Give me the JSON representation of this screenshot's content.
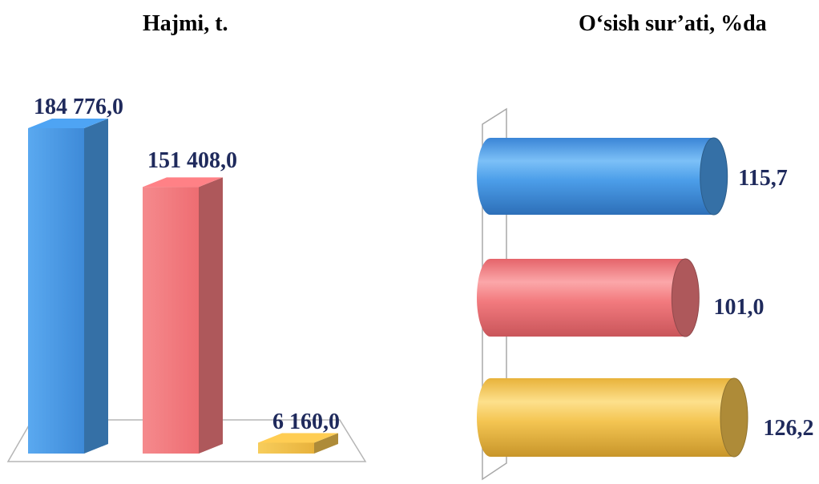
{
  "chart_data": [
    {
      "type": "bar",
      "title": "Hajmi, t.",
      "categories": [
        "",
        "",
        ""
      ],
      "values": [
        184776.0,
        151408.0,
        6160.0
      ],
      "labels": [
        "184 776,0",
        "151 408,0",
        "6 160,0"
      ],
      "colors": [
        "#4a9be6",
        "#f27a7e",
        "#f2c14e"
      ],
      "ylim": [
        0,
        184776
      ],
      "grid": false,
      "legend": "none"
    },
    {
      "type": "bar",
      "orientation": "horizontal",
      "title": "O‘sish sur’ati, %da",
      "categories": [
        "",
        "",
        ""
      ],
      "values": [
        115.7,
        101.0,
        126.2
      ],
      "labels": [
        "115,7",
        "101,0",
        "126,2"
      ],
      "colors": [
        "#4a9be6",
        "#f27a7e",
        "#f2c14e"
      ],
      "xlim": [
        0,
        126.2
      ],
      "grid": false,
      "legend": "none"
    }
  ]
}
